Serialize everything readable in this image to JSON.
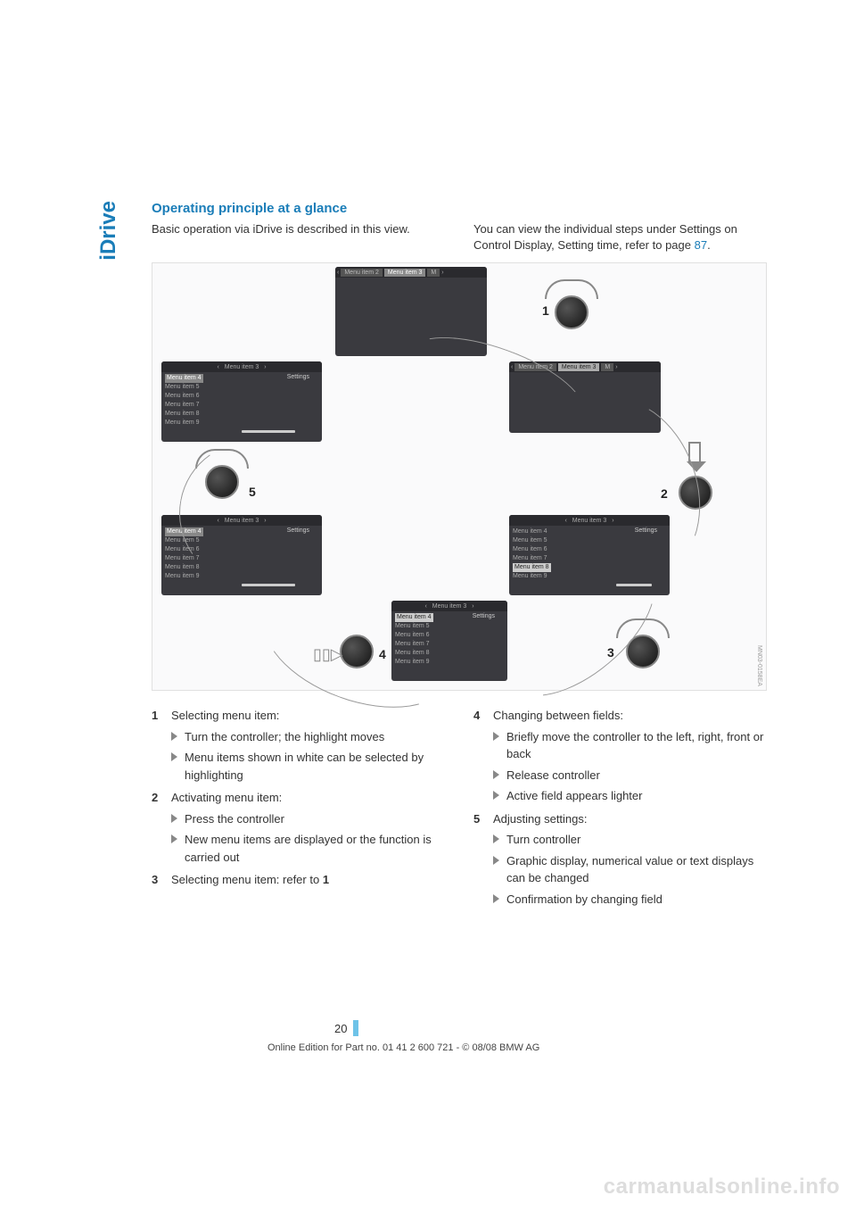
{
  "sideTab": "iDrive",
  "sectionTitle": "Operating principle at a glance",
  "introLeft": "Basic operation via iDrive is described in this view.",
  "introRight1": "You can view the individual steps under Settings on Control Display, Setting time, refer to page ",
  "introRightLink": "87",
  "introRight2": ".",
  "diagram": {
    "menuItems": [
      "Menu item 4",
      "Menu item 5",
      "Menu item 6",
      "Menu item 7",
      "Menu item 8",
      "Menu item 9"
    ],
    "tabItems": [
      "Menu item 2",
      "Menu item 3",
      "M"
    ],
    "headerSingle": "Menu item 3",
    "settings": "Settings",
    "labels": {
      "n1": "1",
      "n2": "2",
      "n3": "3",
      "n4": "4",
      "n5": "5"
    },
    "code": "MN03-0158EA"
  },
  "stepsLeft": [
    {
      "num": "1",
      "title": "Selecting menu item:",
      "subs": [
        "Turn the controller; the highlight moves",
        "Menu items shown in white can be selected by highlighting"
      ]
    },
    {
      "num": "2",
      "title": "Activating menu item:",
      "subs": [
        "Press the controller",
        "New menu items are displayed or the function is carried out"
      ]
    },
    {
      "num": "3",
      "title_html": "Selecting menu item: refer to <b>1</b>",
      "subs": []
    }
  ],
  "stepsRight": [
    {
      "num": "4",
      "title": "Changing between fields:",
      "subs": [
        "Briefly move the controller to the left, right, front or back",
        "Release controller",
        "Active field appears lighter"
      ]
    },
    {
      "num": "5",
      "title": "Adjusting settings:",
      "subs": [
        "Turn controller",
        "Graphic display, numerical value or text displays can be changed",
        "Confirmation by changing field"
      ]
    }
  ],
  "pageNumber": "20",
  "copyright": "Online Edition for Part no. 01 41 2 600 721 - © 08/08 BMW AG",
  "watermark": "carmanualsonline.info"
}
